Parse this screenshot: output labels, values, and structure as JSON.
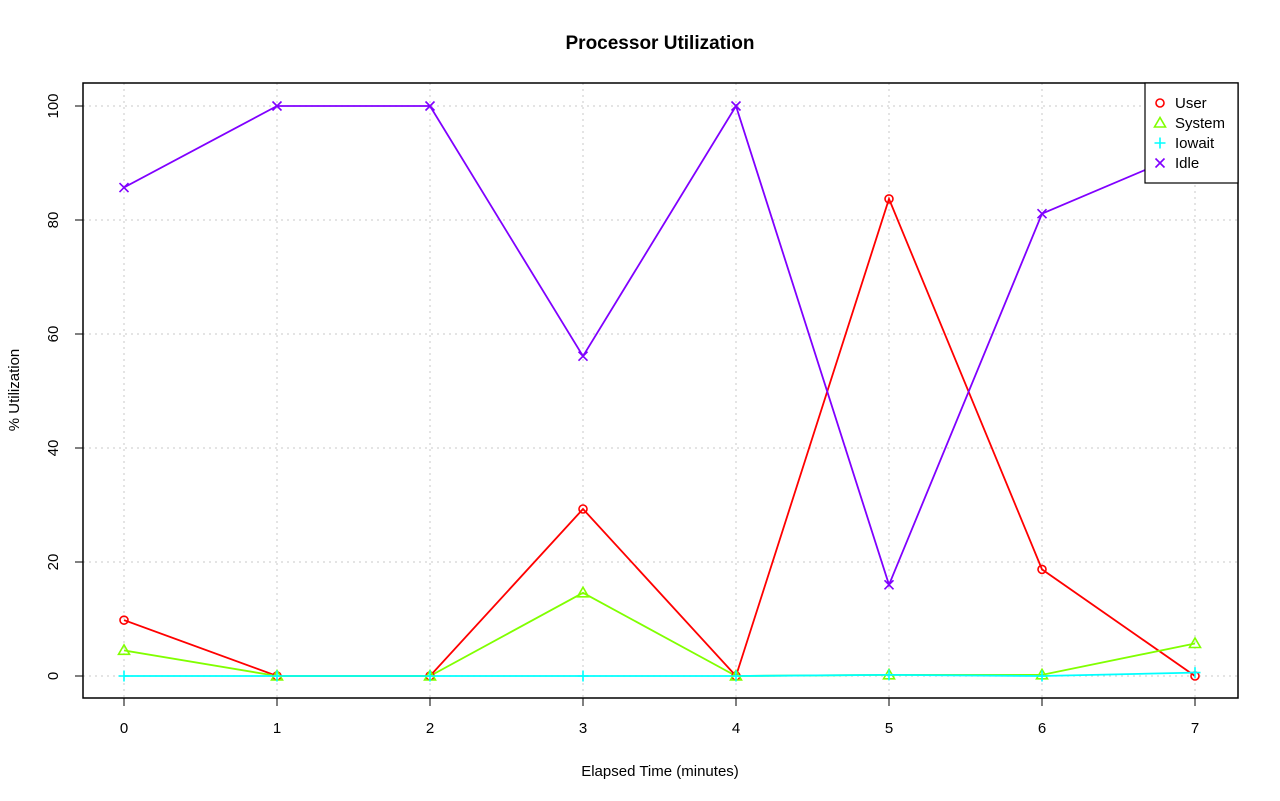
{
  "chart_data": {
    "type": "line",
    "title": "Processor Utilization",
    "xlabel": "Elapsed Time (minutes)",
    "ylabel": "% Utilization",
    "x": [
      0,
      1,
      2,
      3,
      4,
      5,
      6,
      7
    ],
    "xlim": [
      0,
      7
    ],
    "ylim": [
      0,
      100
    ],
    "x_ticks": [
      "0",
      "1",
      "2",
      "3",
      "4",
      "5",
      "6",
      "7"
    ],
    "y_ticks": [
      "0",
      "20",
      "40",
      "60",
      "80",
      "100"
    ],
    "grid": true,
    "legend_position": "top-right",
    "series": [
      {
        "name": "User",
        "color": "#ff0000",
        "marker": "circle",
        "values": [
          9.8,
          0,
          0,
          29.3,
          0,
          83.7,
          18.7,
          0
        ]
      },
      {
        "name": "System",
        "color": "#80ff00",
        "marker": "triangle",
        "values": [
          4.5,
          0,
          0,
          14.6,
          0,
          0.2,
          0.2,
          5.7
        ]
      },
      {
        "name": "Iowait",
        "color": "#00ffff",
        "marker": "plus",
        "values": [
          0,
          0,
          0,
          0,
          0,
          0.2,
          0,
          0.6
        ]
      },
      {
        "name": "Idle",
        "color": "#8000ff",
        "marker": "cross",
        "values": [
          85.7,
          100,
          100,
          56.1,
          100,
          16.0,
          81.1,
          92.5
        ]
      }
    ]
  }
}
